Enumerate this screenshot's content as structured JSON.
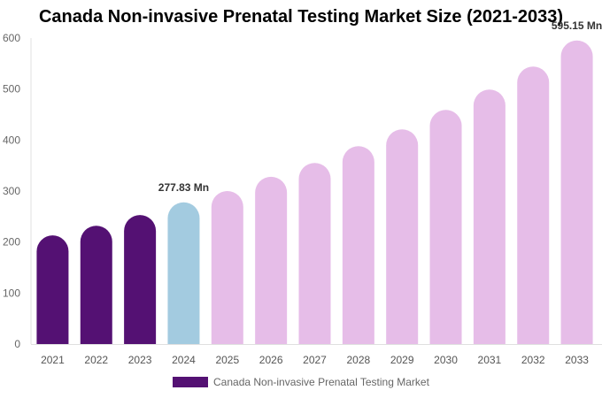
{
  "chart_data": {
    "type": "bar",
    "title": "Canada Non-invasive Prenatal Testing Market Size (2021-2033)",
    "categories": [
      "2021",
      "2022",
      "2023",
      "2024",
      "2025",
      "2026",
      "2027",
      "2028",
      "2029",
      "2030",
      "2031",
      "2032",
      "2033"
    ],
    "series": [
      {
        "name": "Canada Non-invasive Prenatal Testing Market",
        "values": [
          213,
          232,
          253,
          277.83,
          300,
          328,
          355,
          388,
          421,
          459,
          499,
          544,
          595.15
        ]
      }
    ],
    "data_labels": {
      "3": "277.83 Mn",
      "12": "595.15 Mn"
    },
    "ylim": [
      0,
      600
    ],
    "yticks": [
      0,
      100,
      200,
      300,
      400,
      500,
      600
    ],
    "xlabel": "",
    "ylabel": "",
    "grid": false,
    "legend_position": "bottom",
    "colors": {
      "historical": "#541173",
      "base_year": "#a3cbe0",
      "forecast": "#e6bde8"
    },
    "color_segments": [
      "historical",
      "historical",
      "historical",
      "base_year",
      "forecast",
      "forecast",
      "forecast",
      "forecast",
      "forecast",
      "forecast",
      "forecast",
      "forecast",
      "forecast"
    ]
  }
}
